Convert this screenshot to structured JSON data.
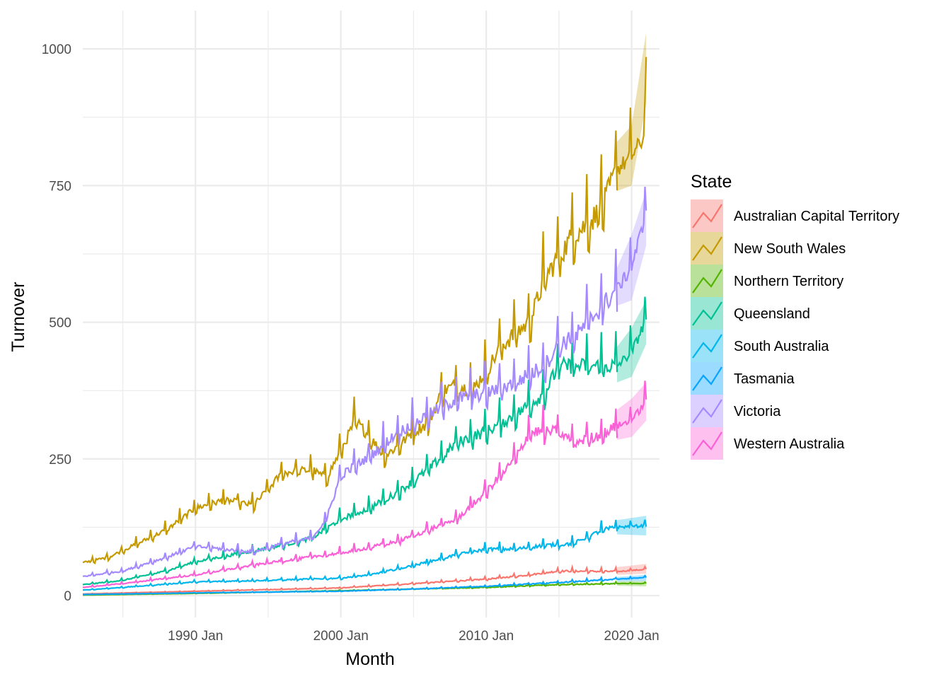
{
  "chart_data": {
    "type": "line",
    "title": "",
    "xlabel": "Month",
    "ylabel": "Turnover",
    "x_tick_labels": [
      "1990 Jan",
      "2000 Jan",
      "2010 Jan",
      "2020 Jan"
    ],
    "y_tick_labels": [
      "0",
      "250",
      "500",
      "750",
      "1000"
    ],
    "x_range": [
      "1982 Apr",
      "2021 Dec"
    ],
    "ylim": [
      -40,
      1070
    ],
    "grid": true,
    "legend": {
      "title": "State",
      "placement": "right"
    },
    "forecast_start": "2019 Jan",
    "forecast_end": "2021 Jan",
    "series": [
      {
        "name": "Australian Capital Territory",
        "color": "#F8766D",
        "points": [
          [
            "1982 Apr",
            3
          ],
          [
            "1990 Jan",
            8
          ],
          [
            "2000 Jan",
            14
          ],
          [
            "2005 Jan",
            22
          ],
          [
            "2010 Jan",
            30
          ],
          [
            "2013 Jan",
            38
          ],
          [
            "2015 Jan",
            45
          ],
          [
            "2019 Jan",
            44
          ]
        ],
        "forecast": {
          "values": [
            [
              "2019 Jan",
              44
            ],
            [
              "2021 Jan",
              48
            ]
          ],
          "interval": [
            [
              "2019 Jan",
              38,
              52
            ],
            [
              "2021 Jan",
              40,
              58
            ]
          ]
        }
      },
      {
        "name": "New South Wales",
        "color": "#C49A00",
        "points": [
          [
            "1982 Apr",
            60
          ],
          [
            "1984 Jan",
            70
          ],
          [
            "1986 Jan",
            95
          ],
          [
            "1988 Jan",
            120
          ],
          [
            "1990 Jan",
            160
          ],
          [
            "1992 Jan",
            175
          ],
          [
            "1994 Jan",
            165
          ],
          [
            "1996 Jan",
            225
          ],
          [
            "1998 Jan",
            230
          ],
          [
            "1999 Jan",
            215
          ],
          [
            "2000 Jan",
            265
          ],
          [
            "2001 Jan",
            320
          ],
          [
            "2002 Jan",
            290
          ],
          [
            "2003 Jan",
            255
          ],
          [
            "2004 Jan",
            275
          ],
          [
            "2005 Jan",
            300
          ],
          [
            "2006 Jan",
            315
          ],
          [
            "2007 Jan",
            375
          ],
          [
            "2008 Jan",
            385
          ],
          [
            "2009 Jan",
            375
          ],
          [
            "2010 Jan",
            410
          ],
          [
            "2011 Jan",
            455
          ],
          [
            "2012 Jan",
            480
          ],
          [
            "2013 Jan",
            500
          ],
          [
            "2014 Jan",
            580
          ],
          [
            "2015 Jan",
            620
          ],
          [
            "2016 Jan",
            660
          ],
          [
            "2017 Jan",
            680
          ],
          [
            "2018 Jan",
            710
          ],
          [
            "2019 Jan",
            780
          ]
        ],
        "forecast": {
          "values": [
            [
              "2019 Jan",
              780
            ],
            [
              "2019 Dec",
              800
            ],
            [
              "2020 Dec",
              840
            ],
            [
              "2021 Jan",
              975
            ]
          ],
          "interval": [
            [
              "2019 Jan",
              740,
              830
            ],
            [
              "2020 Jan",
              750,
              860
            ],
            [
              "2021 Jan",
              900,
              1030
            ]
          ]
        }
      },
      {
        "name": "Northern Territory",
        "color": "#53B400",
        "points": [
          [
            "1982 Apr",
            1
          ],
          [
            "1990 Jan",
            4
          ],
          [
            "2000 Jan",
            9
          ],
          [
            "2005 Jan",
            12
          ],
          [
            "2010 Jan",
            15
          ],
          [
            "2015 Jan",
            20
          ],
          [
            "2019 Jan",
            22
          ]
        ],
        "forecast": {
          "values": [
            [
              "2019 Jan",
              22
            ],
            [
              "2021 Jan",
              22
            ]
          ],
          "interval": [
            [
              "2019 Jan",
              18,
              26
            ],
            [
              "2021 Jan",
              17,
              27
            ]
          ]
        }
      },
      {
        "name": "Queensland",
        "color": "#00C094",
        "points": [
          [
            "1982 Apr",
            20
          ],
          [
            "1985 Jan",
            28
          ],
          [
            "1988 Jan",
            45
          ],
          [
            "1990 Jan",
            62
          ],
          [
            "1992 Jan",
            72
          ],
          [
            "1994 Jan",
            82
          ],
          [
            "1996 Jan",
            92
          ],
          [
            "1998 Jan",
            105
          ],
          [
            "2000 Jan",
            140
          ],
          [
            "2002 Jan",
            160
          ],
          [
            "2004 Jan",
            190
          ],
          [
            "2006 Jan",
            230
          ],
          [
            "2008 Jan",
            280
          ],
          [
            "2010 Jan",
            300
          ],
          [
            "2012 Jan",
            330
          ],
          [
            "2014 Jan",
            370
          ],
          [
            "2015 Jan",
            420
          ],
          [
            "2016 Jan",
            420
          ],
          [
            "2018 Jan",
            420
          ],
          [
            "2019 Jan",
            420
          ]
        ],
        "forecast": {
          "values": [
            [
              "2019 Jan",
              420
            ],
            [
              "2020 Jan",
              445
            ],
            [
              "2021 Jan",
              505
            ]
          ],
          "interval": [
            [
              "2019 Jan",
              390,
              455
            ],
            [
              "2020 Jan",
              400,
              490
            ],
            [
              "2021 Jan",
              460,
              540
            ]
          ]
        }
      },
      {
        "name": "South Australia",
        "color": "#00B6EB",
        "points": [
          [
            "1982 Apr",
            10
          ],
          [
            "1985 Jan",
            15
          ],
          [
            "1990 Jan",
            25
          ],
          [
            "1995 Jan",
            28
          ],
          [
            "2000 Jan",
            32
          ],
          [
            "2002 Jan",
            38
          ],
          [
            "2005 Jan",
            55
          ],
          [
            "2008 Jan",
            75
          ],
          [
            "2010 Jan",
            85
          ],
          [
            "2012 Jan",
            85
          ],
          [
            "2014 Jan",
            92
          ],
          [
            "2016 Jan",
            95
          ],
          [
            "2018 Jan",
            120
          ],
          [
            "2019 Jan",
            125
          ]
        ],
        "forecast": {
          "values": [
            [
              "2019 Jan",
              125
            ],
            [
              "2021 Jan",
              128
            ]
          ],
          "interval": [
            [
              "2019 Jan",
              112,
              138
            ],
            [
              "2021 Jan",
              110,
              146
            ]
          ]
        }
      },
      {
        "name": "Tasmania",
        "color": "#06A4FF",
        "points": [
          [
            "1982 Apr",
            2
          ],
          [
            "1990 Jan",
            5
          ],
          [
            "2000 Jan",
            8
          ],
          [
            "2005 Jan",
            12
          ],
          [
            "2010 Jan",
            17
          ],
          [
            "2015 Jan",
            24
          ],
          [
            "2019 Jan",
            30
          ]
        ],
        "forecast": {
          "values": [
            [
              "2019 Jan",
              30
            ],
            [
              "2021 Jan",
              33
            ]
          ],
          "interval": [
            [
              "2019 Jan",
              26,
              34
            ],
            [
              "2021 Jan",
              27,
              38
            ]
          ]
        }
      },
      {
        "name": "Victoria",
        "color": "#A58AFF",
        "points": [
          [
            "1982 Apr",
            35
          ],
          [
            "1985 Jan",
            45
          ],
          [
            "1988 Jan",
            70
          ],
          [
            "1990 Jan",
            90
          ],
          [
            "1992 Jan",
            85
          ],
          [
            "1994 Jan",
            80
          ],
          [
            "1996 Jan",
            95
          ],
          [
            "1998 Jan",
            105
          ],
          [
            "1999 Jan",
            140
          ],
          [
            "2000 Jan",
            220
          ],
          [
            "2002 Jan",
            255
          ],
          [
            "2004 Jan",
            300
          ],
          [
            "2006 Jan",
            330
          ],
          [
            "2008 Jan",
            360
          ],
          [
            "2010 Jan",
            370
          ],
          [
            "2012 Jan",
            390
          ],
          [
            "2014 Jan",
            420
          ],
          [
            "2015 Jan",
            460
          ],
          [
            "2016 Jan",
            470
          ],
          [
            "2018 Jan",
            530
          ],
          [
            "2019 Jan",
            560
          ]
        ],
        "forecast": {
          "values": [
            [
              "2019 Jan",
              560
            ],
            [
              "2020 Jan",
              600
            ],
            [
              "2021 Jan",
              700
            ]
          ],
          "interval": [
            [
              "2019 Jan",
              530,
              600
            ],
            [
              "2020 Jan",
              540,
              660
            ],
            [
              "2021 Jan",
              640,
              740
            ]
          ]
        }
      },
      {
        "name": "Western Australia",
        "color": "#FB61D7",
        "points": [
          [
            "1982 Apr",
            15
          ],
          [
            "1985 Jan",
            22
          ],
          [
            "1990 Jan",
            38
          ],
          [
            "1995 Jan",
            60
          ],
          [
            "2000 Jan",
            78
          ],
          [
            "2002 Jan",
            88
          ],
          [
            "2004 Jan",
            100
          ],
          [
            "2006 Jan",
            120
          ],
          [
            "2008 Jan",
            140
          ],
          [
            "2010 Jan",
            190
          ],
          [
            "2012 Jan",
            250
          ],
          [
            "2013 Jan",
            300
          ],
          [
            "2015 Jan",
            300
          ],
          [
            "2016 Jan",
            280
          ],
          [
            "2018 Jan",
            295
          ],
          [
            "2019 Jan",
            310
          ]
        ],
        "forecast": {
          "values": [
            [
              "2019 Jan",
              310
            ],
            [
              "2020 Jan",
              320
            ],
            [
              "2021 Jan",
              355
            ]
          ],
          "interval": [
            [
              "2019 Jan",
              285,
              340
            ],
            [
              "2020 Jan",
              290,
              360
            ],
            [
              "2021 Jan",
              320,
              390
            ]
          ]
        }
      }
    ]
  }
}
